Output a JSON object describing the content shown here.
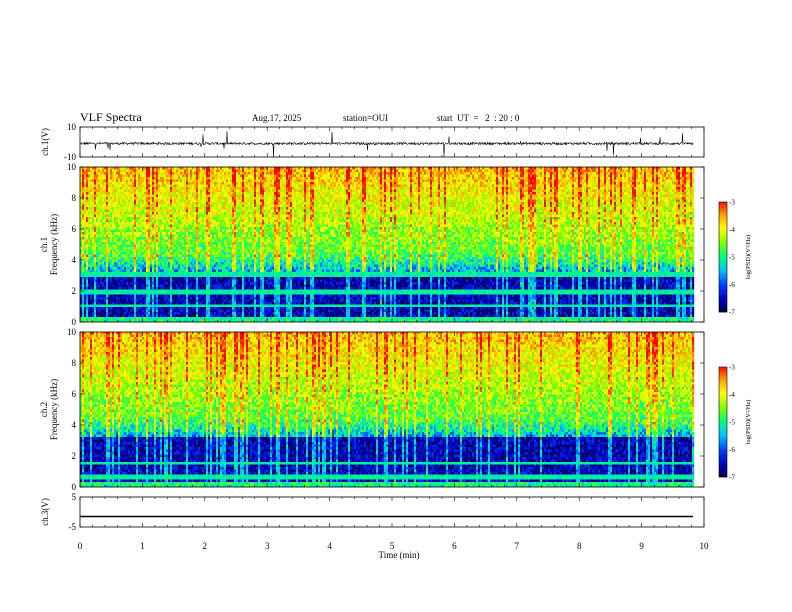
{
  "header": {
    "title": "VLF Spectra",
    "date": "Aug.17, 2025",
    "station": "station=OUI",
    "start": "start  UT  =   2  : 20 : 0"
  },
  "chart_data": [
    {
      "type": "line",
      "name": "ch1-waveform",
      "ylabel": "ch.1(V)",
      "ylim": [
        -10,
        10
      ],
      "y_ticks": [
        "10",
        "-10"
      ],
      "baseline": -1,
      "note_values": "waveform fluctuates near -1 V with occasional spikes"
    },
    {
      "type": "heatmap",
      "name": "ch1-spectrogram",
      "ylabel": "ch.1\nFrequency (kHz)",
      "ylim": [
        0,
        10
      ],
      "y_ticks": [
        "0",
        "2",
        "4",
        "6",
        "8",
        "10"
      ],
      "colorbar": {
        "label": "log(PSD)(V²/Hz)",
        "ticks": [
          "-3",
          "-4",
          "-5",
          "-6",
          "-7"
        ],
        "range": [
          -7,
          -3
        ]
      }
    },
    {
      "type": "heatmap",
      "name": "ch2-spectrogram",
      "ylabel": "ch.2\nFrequency (kHz)",
      "ylim": [
        0,
        10
      ],
      "y_ticks": [
        "0",
        "2",
        "4",
        "6",
        "8",
        "10"
      ],
      "colorbar": {
        "label": "log(PSD)(V²/Hz)",
        "ticks": [
          "-3",
          "-4",
          "-5",
          "-6",
          "-7"
        ],
        "range": [
          -7,
          -3
        ]
      }
    },
    {
      "type": "line",
      "name": "ch3-waveform",
      "ylabel": "ch.3(V)",
      "ylim": [
        -5,
        5
      ],
      "y_ticks": [
        "5",
        "-5"
      ],
      "constant": -1.5
    }
  ],
  "xaxis": {
    "label": "Time  (min)",
    "range": [
      0,
      10
    ],
    "ticks": [
      "0",
      "1",
      "2",
      "3",
      "4",
      "5",
      "6",
      "7",
      "8",
      "9",
      "10"
    ]
  },
  "colors": {
    "colormap": [
      "#000040",
      "#0000c0",
      "#0040ff",
      "#00c0ff",
      "#00ff80",
      "#80ff00",
      "#ffff00",
      "#ffa000",
      "#ff0000",
      "#ffffff"
    ]
  }
}
